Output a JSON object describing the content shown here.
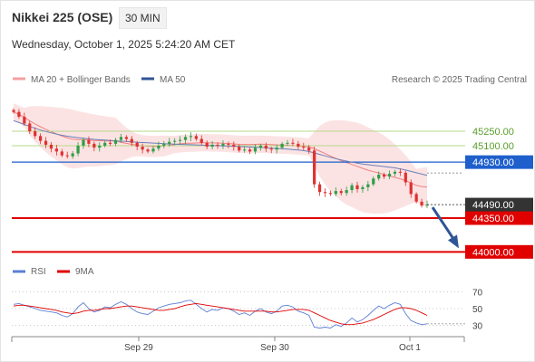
{
  "header": {
    "title": "Nikkei 225 (OSE)",
    "interval": "30 MIN",
    "datetime": "Wednesday, October 1, 2025 5:24:20 AM CET"
  },
  "legend": {
    "main": [
      {
        "label": "MA 20 + Bollinger Bands",
        "color": "#f4a0a0"
      },
      {
        "label": "MA 50",
        "color": "#2f5597"
      }
    ],
    "rsi": [
      {
        "label": "RSI",
        "color": "#5b7fd6"
      },
      {
        "label": "9MA",
        "color": "#e00000"
      }
    ]
  },
  "copyright": "Research © 2025 Trading Central",
  "colors": {
    "up": "#2e9e46",
    "down": "#e03030",
    "resistance": "#b5d98a",
    "pivot": "#1f5fcc",
    "support": "#e00000",
    "arrow": "#2f5597",
    "rsi_line": "#5b7fd6",
    "rsi_ma": "#e00000",
    "bands": "#fcdede"
  },
  "chart_data": {
    "type": "candlestick",
    "x_ticks": [
      "Sep 29",
      "Sep 30",
      "Oct 1"
    ],
    "y_range": [
      43900,
      45700
    ],
    "levels": [
      {
        "kind": "resistance",
        "value": 45250.0,
        "label": "45250.00"
      },
      {
        "kind": "resistance",
        "value": 45100.0,
        "label": "45100.00"
      },
      {
        "kind": "pivot",
        "value": 44930.0,
        "label": "44930.00"
      },
      {
        "kind": "support",
        "value": 44350.0,
        "label": "44350.00"
      },
      {
        "kind": "support",
        "value": 44000.0,
        "label": "44000.00"
      }
    ],
    "last_price": {
      "value": 44490.0,
      "label": "44490.00"
    },
    "forecast_arrow": {
      "from": 44490,
      "to": 44000
    },
    "close": [
      45450,
      45400,
      45330,
      45250,
      45200,
      45150,
      45110,
      45070,
      45040,
      45000,
      44990,
      45020,
      45100,
      45160,
      45120,
      45080,
      45100,
      45130,
      45120,
      45160,
      45190,
      45170,
      45130,
      45090,
      45060,
      45040,
      45070,
      45100,
      45120,
      45140,
      45150,
      45160,
      45190,
      45200,
      45170,
      45130,
      45090,
      45110,
      45100,
      45120,
      45110,
      45090,
      45050,
      45060,
      45040,
      45080,
      45100,
      45070,
      45060,
      45080,
      45120,
      45130,
      45120,
      45090,
      45080,
      45050,
      44700,
      44620,
      44610,
      44600,
      44630,
      44610,
      44640,
      44690,
      44650,
      44670,
      44700,
      44760,
      44800,
      44780,
      44810,
      44830,
      44820,
      44720,
      44600,
      44520,
      44480,
      44490
    ],
    "ma50": [
      45360,
      45340,
      45320,
      45300,
      45280,
      45262,
      45247,
      45233,
      45220,
      45208,
      45198,
      45190,
      45183,
      45177,
      45171,
      45166,
      45162,
      45158,
      45154,
      45150,
      45147,
      45144,
      45140,
      45136,
      45133,
      45130,
      45127,
      45124,
      45121,
      45118,
      45116,
      45114,
      45112,
      45110,
      45108,
      45106,
      45104,
      45102,
      45100,
      45098,
      45096,
      45094,
      45092,
      45090,
      45087,
      45084,
      45081,
      45078,
      45075,
      45072,
      45068,
      45064,
      45060,
      45055,
      45049,
      45040,
      45025,
      45010,
      44995,
      44980,
      44966,
      44953,
      44941,
      44930,
      44920,
      44911,
      44903,
      44896,
      44890,
      44884,
      44878,
      44870,
      44860,
      44848,
      44834,
      44820,
      44806,
      44793
    ],
    "rsi": {
      "ticks": [
        70,
        50,
        30
      ],
      "range": [
        20,
        80
      ],
      "values": [
        55,
        56,
        54,
        52,
        50,
        48,
        47,
        46,
        45,
        42,
        40,
        44,
        52,
        57,
        50,
        46,
        48,
        52,
        51,
        55,
        58,
        55,
        50,
        46,
        44,
        43,
        47,
        51,
        53,
        55,
        56,
        57,
        59,
        60,
        55,
        50,
        46,
        49,
        48,
        51,
        50,
        47,
        43,
        45,
        42,
        47,
        50,
        46,
        44,
        47,
        53,
        54,
        52,
        47,
        45,
        42,
        28,
        27,
        28,
        27,
        31,
        29,
        33,
        39,
        34,
        37,
        42,
        48,
        53,
        50,
        54,
        57,
        55,
        44,
        36,
        33,
        31,
        32
      ],
      "ma": [
        53,
        54,
        54,
        53,
        52,
        51,
        50,
        49,
        48,
        46,
        45,
        44,
        45,
        47,
        48,
        48,
        49,
        50,
        50,
        51,
        52,
        53,
        53,
        52,
        51,
        50,
        49,
        48,
        48,
        49,
        50,
        52,
        54,
        55,
        56,
        55,
        54,
        53,
        52,
        51,
        50,
        49,
        48,
        47,
        47,
        47,
        47,
        47,
        46,
        46,
        47,
        48,
        49,
        49,
        49,
        48,
        45,
        42,
        39,
        36,
        34,
        32,
        31,
        31,
        32,
        33,
        35,
        37,
        40,
        43,
        46,
        49,
        51,
        51,
        50,
        48,
        45,
        42
      ]
    }
  }
}
